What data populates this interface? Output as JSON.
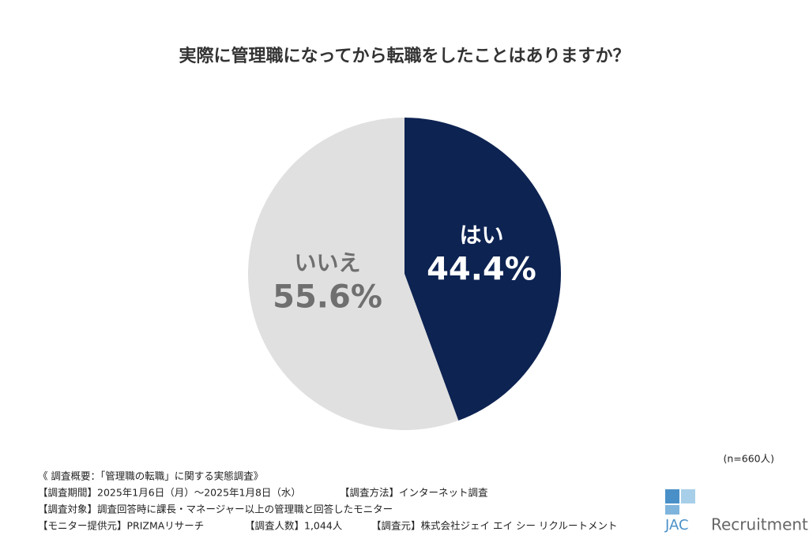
{
  "chart_data": {
    "type": "pie",
    "title": "実際に管理職になってから転職をしたことはありますか？",
    "categories": [
      "はい",
      "いいえ"
    ],
    "values": [
      44.4,
      55.6
    ],
    "value_labels": [
      "44.4%",
      "55.6%"
    ],
    "colors": [
      "#0d2352",
      "#e0e0e0"
    ],
    "label_colors": [
      "#ffffff",
      "#6f6f6f"
    ],
    "sample_note": "(n=660人)"
  },
  "footnotes": [
    [
      "《 調査概要：「管理職の転職」に関する実態調査》"
    ],
    [
      "【調査期間】2025年1月6日（月）～2025年1月8日（水）",
      "【調査方法】インターネット調査"
    ],
    [
      "【調査対象】調査回答時に課長・マネージャー以上の管理職と回答したモニター"
    ],
    [
      "【モニター提供元】PRIZMAリサーチ",
      "【調査人数】1,044人",
      "【調査元】株式会社ジェイ エイ シー リクルートメント"
    ]
  ],
  "logo": {
    "mark": "JAC",
    "name": "Recruitment"
  }
}
